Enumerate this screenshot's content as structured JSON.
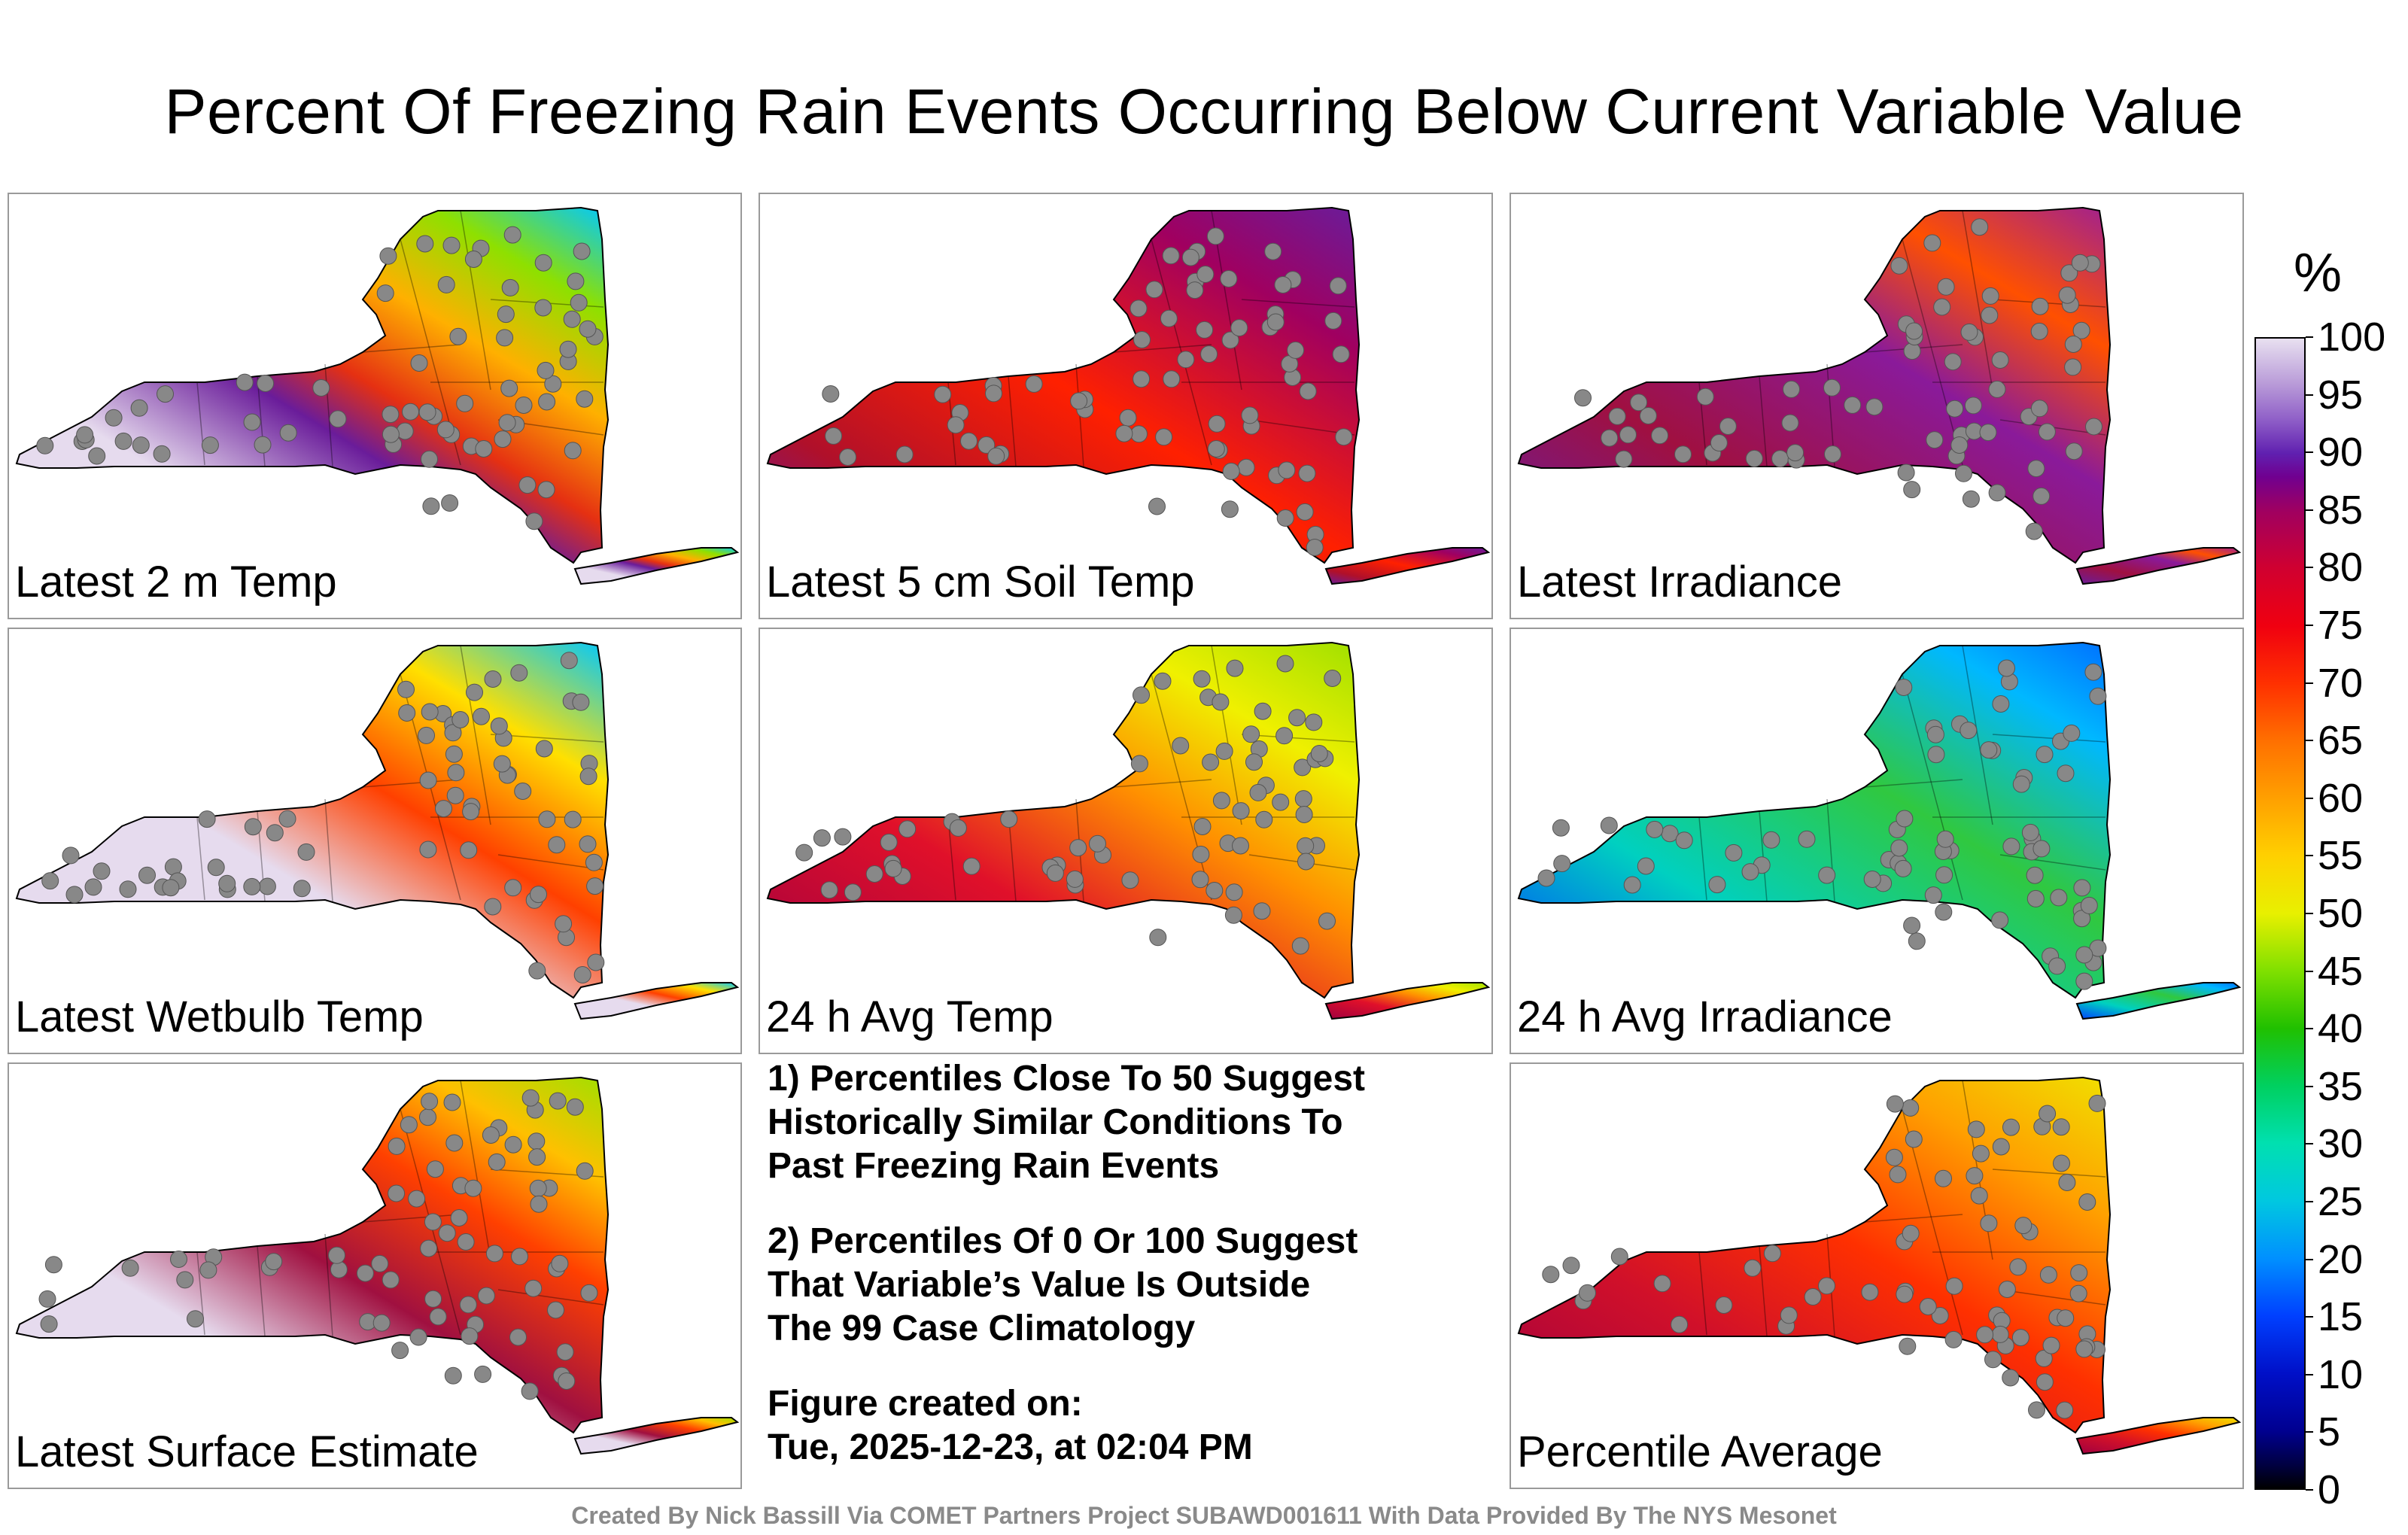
{
  "title": "Percent Of Freezing Rain Events Occurring Below Current Variable Value",
  "panels": [
    {
      "label": "Latest 2 m Temp",
      "scheme": "temp2m"
    },
    {
      "label": "Latest 5 cm Soil Temp",
      "scheme": "soil"
    },
    {
      "label": "Latest Irradiance",
      "scheme": "irr"
    },
    {
      "label": "Latest Wetbulb Temp",
      "scheme": "wetbulb"
    },
    {
      "label": "24 h Avg Temp",
      "scheme": "avgtemp"
    },
    {
      "label": "24 h Avg Irradiance",
      "scheme": "avgirr"
    },
    {
      "label": "Latest Surface Estimate",
      "scheme": "surface"
    },
    {
      "label": "Percentile Average",
      "scheme": "average"
    }
  ],
  "notes": {
    "note1": "1) Percentiles Close To 50 Suggest\nHistorically Similar Conditions To\nPast Freezing Rain Events",
    "note2": "2) Percentiles Of 0 Or 100 Suggest\nThat Variable’s Value Is Outside\nThe 99 Case Climatology",
    "created": "Figure created on:\nTue, 2025-12-23, at 02:04 PM"
  },
  "colorbar": {
    "unit": "%",
    "ticks": [
      "100",
      "95",
      "90",
      "85",
      "80",
      "75",
      "70",
      "65",
      "60",
      "55",
      "50",
      "45",
      "40",
      "35",
      "30",
      "25",
      "20",
      "15",
      "10",
      "5",
      "0"
    ]
  },
  "footer": "Created By Nick Bassill Via COMET Partners Project SUBAWD001611 With Data Provided By The NYS Mesonet",
  "colors": {
    "map_outline": "#000000",
    "station_fill": "#888888"
  }
}
